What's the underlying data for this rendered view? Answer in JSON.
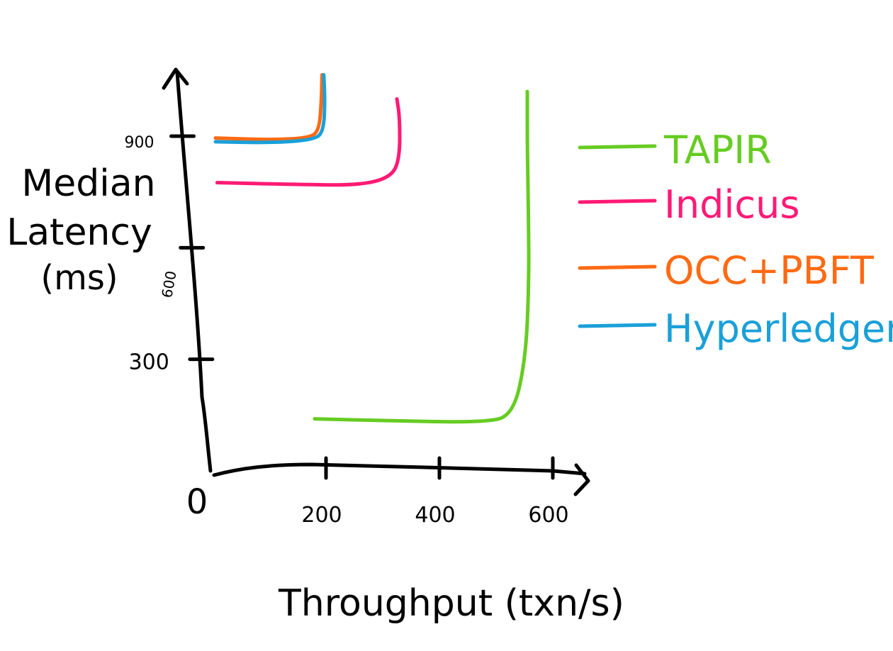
{
  "chart_data": {
    "type": "line",
    "xlabel": "Throughput (txn/s)",
    "ylabel_lines": [
      "Median",
      "Latency",
      "(ms)"
    ],
    "x_ticks": [
      {
        "value": 200,
        "label": "200"
      },
      {
        "value": 400,
        "label": "400"
      },
      {
        "value": 600,
        "label": "600"
      }
    ],
    "y_ticks": [
      {
        "value": 300,
        "label": "300"
      },
      {
        "value": 600,
        "label": "600"
      },
      {
        "value": 900,
        "label": "900"
      }
    ],
    "origin_label": "0",
    "xlim": [
      0,
      650
    ],
    "ylim": [
      0,
      1200
    ],
    "legend_position": "right",
    "series": [
      {
        "name": "TAPIR",
        "color": "#66cc22",
        "points": [
          [
            180,
            140
          ],
          [
            300,
            135
          ],
          [
            480,
            130
          ],
          [
            530,
            150
          ],
          [
            552,
            300
          ],
          [
            558,
            500
          ],
          [
            557,
            700
          ],
          [
            555,
            870
          ],
          [
            555,
            1020
          ]
        ]
      },
      {
        "name": "Indicus",
        "color": "#ff1a75",
        "points": [
          [
            8,
            775
          ],
          [
            150,
            770
          ],
          [
            260,
            768
          ],
          [
            315,
            790
          ],
          [
            330,
            840
          ],
          [
            330,
            950
          ],
          [
            325,
            1000
          ]
        ]
      },
      {
        "name": "OCC+PBFT",
        "color": "#ff6a13",
        "points": [
          [
            5,
            895
          ],
          [
            100,
            890
          ],
          [
            170,
            895
          ],
          [
            188,
            915
          ],
          [
            192,
            1000
          ],
          [
            193,
            1065
          ]
        ]
      },
      {
        "name": "Hyperledger",
        "color": "#1aa0d8",
        "points": [
          [
            5,
            885
          ],
          [
            100,
            882
          ],
          [
            180,
            890
          ],
          [
            196,
            915
          ],
          [
            198,
            1000
          ],
          [
            196,
            1065
          ]
        ]
      }
    ]
  }
}
